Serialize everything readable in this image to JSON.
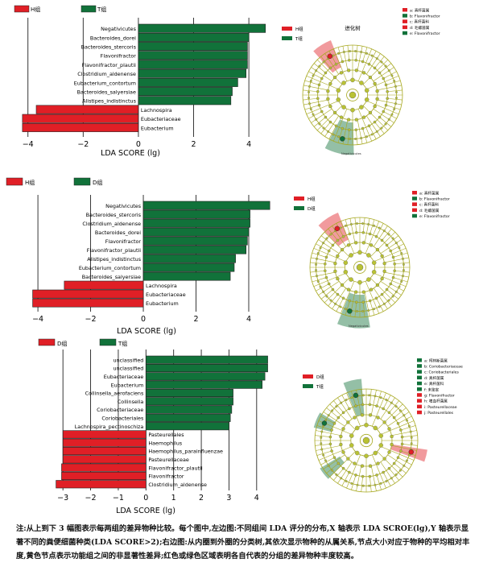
{
  "colors": {
    "red": "#e01f26",
    "green": "#11723a",
    "edge": "#222222",
    "node": "#b9c234",
    "tree_line": "#a7a81f"
  },
  "panels": [
    {
      "legend": [
        "H组",
        "T组"
      ],
      "tree_title": "进化树",
      "tree_groups": [
        "H组",
        "T组"
      ],
      "tree_key": [
        "a: 真杆菌属",
        "b: Flavonifractor",
        "c: 真杆菌科",
        "d: 毛螺菌属",
        "e: Flavonifractor"
      ],
      "tree_key_colors": [
        "#e01f26",
        "#11723a",
        "#e01f26",
        "#e01f26",
        "#11723a"
      ],
      "tree_annotation": "Negativicutes",
      "xlabel": "LDA SCORE (lg)"
    },
    {
      "legend": [
        "H组",
        "D组"
      ],
      "tree_title": "",
      "tree_groups": [
        "H组",
        "D组"
      ],
      "tree_key": [
        "a: 真杆菌属",
        "b: Flavonifractor",
        "c: 真杆菌科",
        "d: 毛螺菌属",
        "e: Flavonifractor"
      ],
      "tree_key_colors": [
        "#e01f26",
        "#11723a",
        "#e01f26",
        "#e01f26",
        "#11723a"
      ],
      "tree_annotation": "Negativicutes",
      "xlabel": "LDA SCORE (lg)"
    },
    {
      "legend": [
        "D组",
        "T组"
      ],
      "tree_title": "",
      "tree_groups": [
        "D组",
        "T组"
      ],
      "tree_key": [
        "a: 柯林斯菌属",
        "b: Coriobacteriaceae",
        "c: Coriobacteriales",
        "d: 真杆菌属",
        "e: 真杆菌科",
        "f: 未鉴定",
        "g: Flavonifractor",
        "h: 嗜血杆菌属",
        "i: Pasteurellaceae",
        "j: Pasteurellales"
      ],
      "tree_key_colors": [
        "#11723a",
        "#11723a",
        "#11723a",
        "#11723a",
        "#11723a",
        "#11723a",
        "#e01f26",
        "#e01f26",
        "#e01f26",
        "#e01f26"
      ],
      "tree_annotation": "",
      "xlabel": "LDA SCORE (lg)"
    }
  ],
  "chart_data": [
    {
      "type": "bar",
      "orientation": "horizontal",
      "xlabel": "LDA SCORE (lg)",
      "xticks": [
        -4,
        -2,
        0,
        2,
        4
      ],
      "xlim": [
        -4.4,
        4.9
      ],
      "categories": [
        "Negativicutes",
        "Bacteroides_dorei",
        "Bacteroides_stercoris",
        "Flavonifractor",
        "Flavonifractor_plautii",
        "Clostridium_aldenense",
        "Eubacterium_contortum",
        "Bacteroides_salyersiae",
        "Alistipes_indistinctus",
        "Lachnospira",
        "Eubacteriaceae",
        "Eubacterium"
      ],
      "values": [
        4.6,
        4.0,
        3.95,
        3.95,
        3.95,
        3.9,
        3.6,
        3.4,
        3.35,
        -3.7,
        -4.2,
        -4.2
      ],
      "groups": [
        "T组",
        "T组",
        "T组",
        "T组",
        "T组",
        "T组",
        "T组",
        "T组",
        "T组",
        "H组",
        "H组",
        "H组"
      ]
    },
    {
      "type": "bar",
      "orientation": "horizontal",
      "xlabel": "LDA SCORE (lg)",
      "xticks": [
        -4,
        -2,
        0,
        2,
        4
      ],
      "xlim": [
        -4.4,
        5.1
      ],
      "categories": [
        "Negativicutes",
        "Bacteroides_stercoris",
        "Clostridium_aldenense",
        "Bacteroides_dorei",
        "Flavonifractor",
        "Flavonifractor_plautii",
        "Alistipes_indistinctus",
        "Eubacterium_contortum",
        "Bacteroides_salyersiae",
        "Lachnospira",
        "Eubacteriaceae",
        "Eubacterium"
      ],
      "values": [
        4.8,
        4.05,
        4.05,
        4.0,
        3.95,
        3.9,
        3.5,
        3.45,
        3.3,
        -3.0,
        -4.2,
        -4.2
      ],
      "groups": [
        "D组",
        "D组",
        "D组",
        "D组",
        "D组",
        "D组",
        "D组",
        "D组",
        "D组",
        "H组",
        "H组",
        "H组"
      ]
    },
    {
      "type": "bar",
      "orientation": "horizontal",
      "xlabel": "LDA SCORE (lg)",
      "xticks": [
        -3,
        -2,
        -1,
        0,
        1,
        2,
        3,
        4
      ],
      "xlim": [
        -3.5,
        4.5
      ],
      "categories": [
        "unclassified",
        "unclassified",
        "Eubacteriaceae",
        "Eubacterium",
        "Collinsella_aerofaciens",
        "Collinsella",
        "Coriobacteriaceae",
        "Coriobacteriales",
        "Lachnospira_pectinoschiza",
        "Pasteurellales",
        "Haemophilus",
        "Haemophilus_parainfluenzae",
        "Pasteurellaceae",
        "Flavonifractor_plautii",
        "Flavonifractor",
        "Clostridium_aldenense"
      ],
      "values": [
        4.4,
        4.4,
        4.3,
        4.2,
        3.15,
        3.15,
        3.1,
        3.05,
        3.0,
        -3.0,
        -3.0,
        -3.0,
        -3.0,
        -3.05,
        -3.05,
        -3.25
      ],
      "groups": [
        "T组",
        "T组",
        "T组",
        "T组",
        "T组",
        "T组",
        "T组",
        "T组",
        "T组",
        "D组",
        "D组",
        "D组",
        "D组",
        "D组",
        "D组",
        "D组"
      ]
    }
  ],
  "caption": "注:从上到下 3 幅图表示每两组的差异物种比较。每个图中,左边图:不同组间 LDA 评分的分布,X 轴表示 LDA SCROE(lg),Y 轴表示显著不同的粪便细菌种类(LDA SCORE>2);右边图:从内圈到外圈的分类树,其依次显示物种的从属关系,节点大小对应于物种的平均相对丰度,黄色节点表示功能组之间的非显著性差异;红色或绿色区域表明各自代表的分组的差异物种丰度较高。"
}
